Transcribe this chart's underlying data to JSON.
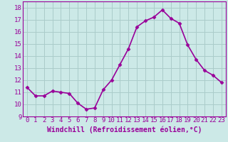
{
  "x": [
    0,
    1,
    2,
    3,
    4,
    5,
    6,
    7,
    8,
    9,
    10,
    11,
    12,
    13,
    14,
    15,
    16,
    17,
    18,
    19,
    20,
    21,
    22,
    23
  ],
  "y": [
    11.4,
    10.7,
    10.7,
    11.1,
    11.0,
    10.9,
    10.1,
    9.6,
    9.7,
    11.2,
    12.0,
    13.3,
    14.6,
    16.4,
    16.9,
    17.2,
    17.8,
    17.1,
    16.7,
    14.9,
    13.7,
    12.8,
    12.4,
    11.8
  ],
  "line_color": "#990099",
  "marker": "D",
  "marker_size": 2.5,
  "xlabel": "Windchill (Refroidissement éolien,°C)",
  "xlabel_fontsize": 7,
  "ylim": [
    9,
    18.5
  ],
  "yticks": [
    9,
    10,
    11,
    12,
    13,
    14,
    15,
    16,
    17,
    18
  ],
  "xticks": [
    0,
    1,
    2,
    3,
    4,
    5,
    6,
    7,
    8,
    9,
    10,
    11,
    12,
    13,
    14,
    15,
    16,
    17,
    18,
    19,
    20,
    21,
    22,
    23
  ],
  "bg_color": "#cce9e7",
  "grid_color": "#aaccca",
  "tick_fontsize": 6.5,
  "line_width": 1.2
}
